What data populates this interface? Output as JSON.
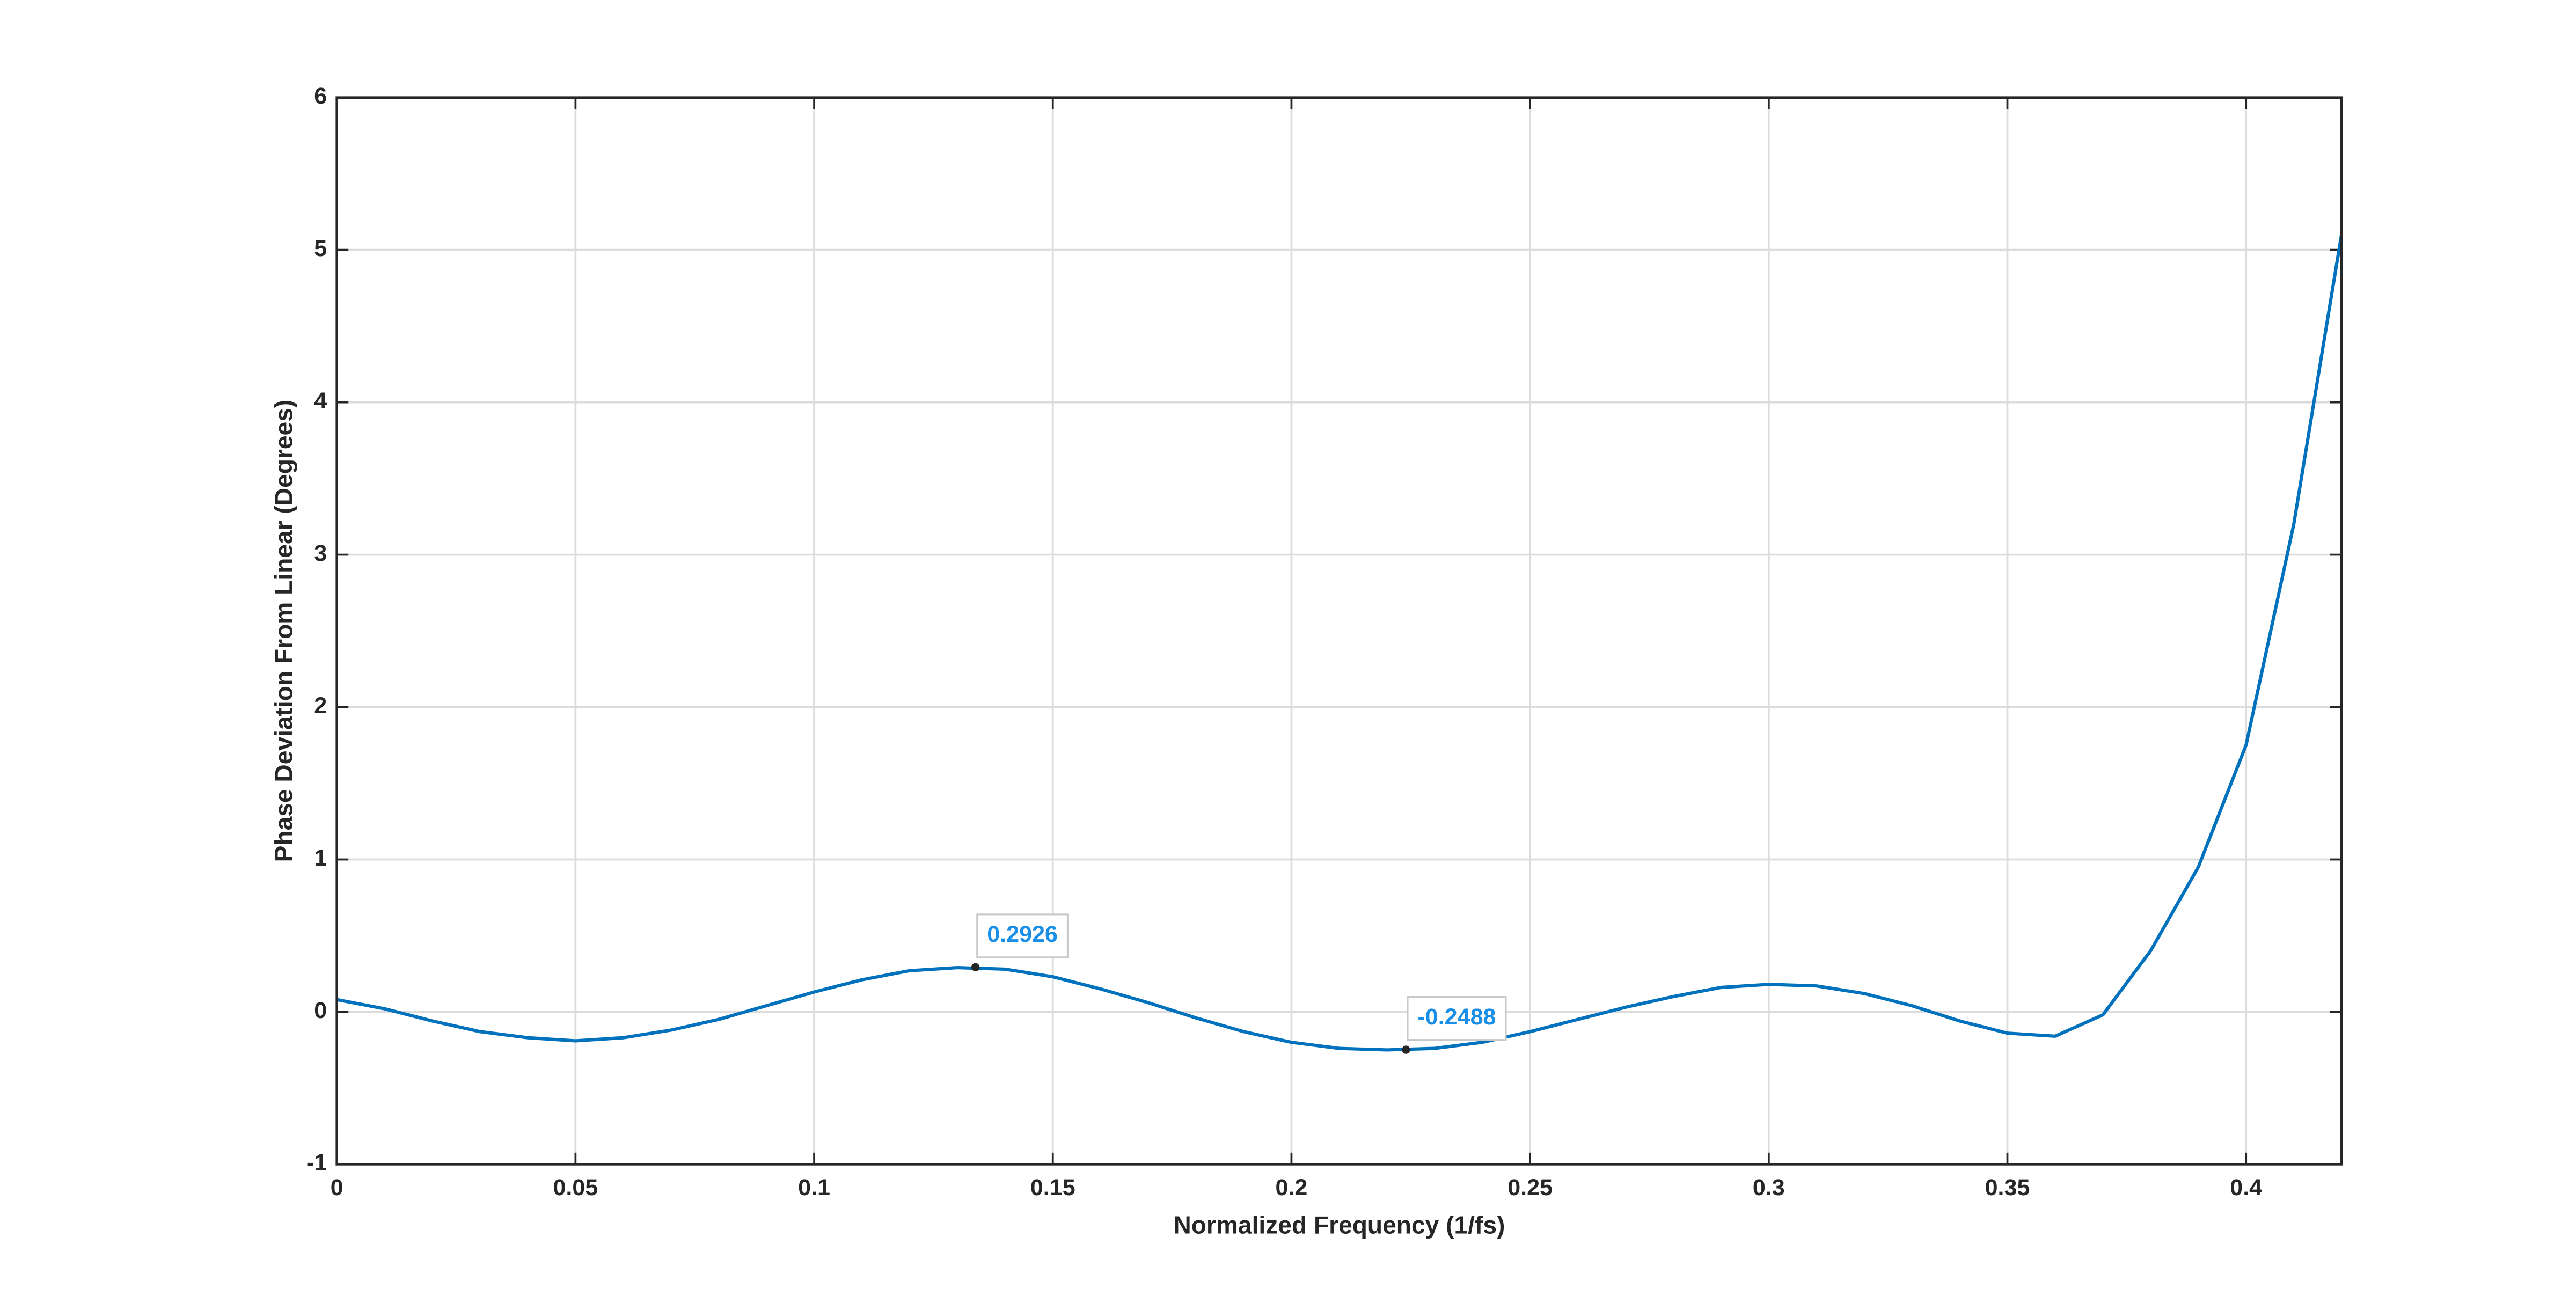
{
  "chart_data": {
    "type": "line",
    "xlabel": "Normalized Frequency (1/fs)",
    "ylabel": "Phase Deviation From Linear (Degrees)",
    "xlim": [
      0,
      0.42
    ],
    "ylim": [
      -1,
      6
    ],
    "xticks": [
      0,
      0.05,
      0.1,
      0.15,
      0.2,
      0.25,
      0.3,
      0.35,
      0.4
    ],
    "yticks": [
      -1,
      0,
      1,
      2,
      3,
      4,
      5,
      6
    ],
    "grid": true,
    "x": [
      0,
      0.01,
      0.02,
      0.03,
      0.04,
      0.05,
      0.06,
      0.07,
      0.08,
      0.09,
      0.1,
      0.11,
      0.12,
      0.13,
      0.14,
      0.15,
      0.16,
      0.17,
      0.18,
      0.19,
      0.2,
      0.21,
      0.22,
      0.23,
      0.24,
      0.25,
      0.26,
      0.27,
      0.28,
      0.29,
      0.3,
      0.31,
      0.32,
      0.33,
      0.34,
      0.35,
      0.36,
      0.37,
      0.38,
      0.39,
      0.4,
      0.41,
      0.42
    ],
    "series": [
      {
        "color": "#0072bd",
        "values": [
          0.08,
          0.02,
          -0.06,
          -0.13,
          -0.17,
          -0.19,
          -0.17,
          -0.12,
          -0.05,
          0.04,
          0.13,
          0.21,
          0.27,
          0.29,
          0.28,
          0.23,
          0.15,
          0.06,
          -0.04,
          -0.13,
          -0.2,
          -0.24,
          -0.25,
          -0.24,
          -0.2,
          -0.13,
          -0.05,
          0.03,
          0.1,
          0.16,
          0.18,
          0.17,
          0.12,
          0.04,
          -0.06,
          -0.14,
          -0.16,
          -0.02,
          0.4,
          0.95,
          1.75,
          3.2,
          5.1
        ]
      }
    ],
    "annotations": [
      {
        "x": 0.1338,
        "y": 0.2926
      },
      {
        "x": 0.224,
        "y": -0.2488
      }
    ]
  }
}
